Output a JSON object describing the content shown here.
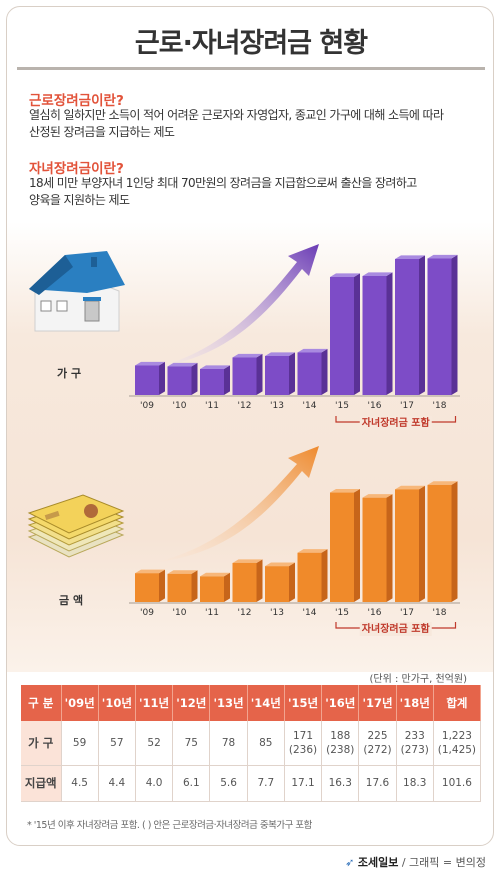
{
  "title": "근로·자녀장려금 현황",
  "intro": {
    "q1": "근로장려금이란?",
    "d1a": "열심히 일하지만 소득이 적어 어려운 근로자와 자영업자, 종교인 가구에 대해 소득에 따라",
    "d1b": "산정된 장려금을 지급하는 제도",
    "q2": "자녀장려금이란?",
    "d2a": "18세 미만 부양자녀 1인당 최대 70만원의 장려금을 지급함으로써 출산을 장려하고",
    "d2b": "양육을 지원하는 제도"
  },
  "label_households": "가 구",
  "label_amount": "금 액",
  "bracket_label": "자녀장려금 포함",
  "unit": "(단위 : 만가구, 천억원)",
  "colors": {
    "purple": "#7d4cc7",
    "orange": "#f08a2a",
    "header": "#e5644a",
    "accent": "#e2533a"
  },
  "table": {
    "corner": "구 분",
    "headers": [
      "'09년",
      "'10년",
      "'11년",
      "'12년",
      "'13년",
      "'14년",
      "'15년",
      "'16년",
      "'17년",
      "'18년",
      "합계"
    ],
    "row1_label": "가 구",
    "row1": [
      [
        "59",
        ""
      ],
      [
        "57",
        ""
      ],
      [
        "52",
        ""
      ],
      [
        "75",
        ""
      ],
      [
        "78",
        ""
      ],
      [
        "85",
        ""
      ],
      [
        "171",
        "(236)"
      ],
      [
        "188",
        "(238)"
      ],
      [
        "225",
        "(272)"
      ],
      [
        "233",
        "(273)"
      ],
      [
        "1,223",
        "(1,425)"
      ]
    ],
    "row2_label": "지급액",
    "row2": [
      "4.5",
      "4.4",
      "4.0",
      "6.1",
      "5.6",
      "7.7",
      "17.1",
      "16.3",
      "17.6",
      "18.3",
      "101.6"
    ]
  },
  "footnote": "* '15년 이후 자녀장려금 포함. (  ) 안은 근로장려금·자녀장려금 중복가구 포함",
  "credit_brand": "조세일보",
  "credit_text": " / 그래픽 = 변의정",
  "chart_data": [
    {
      "type": "bar",
      "title": "",
      "categories": [
        "'09년",
        "'10년",
        "'11년",
        "'12년",
        "'13년",
        "'14년",
        "'15년",
        "'16년",
        "'17년",
        "'18년"
      ],
      "values": [
        59,
        57,
        52,
        75,
        78,
        85,
        236,
        238,
        272,
        273
      ],
      "ylabel": "가 구",
      "ylim": [
        0,
        300
      ]
    },
    {
      "type": "bar",
      "title": "",
      "categories": [
        "'09년",
        "'10년",
        "'11년",
        "'12년",
        "'13년",
        "'14년",
        "'15년",
        "'16년",
        "'17년",
        "'18년"
      ],
      "values": [
        4.5,
        4.4,
        4.0,
        6.1,
        5.6,
        7.7,
        17.1,
        16.3,
        17.6,
        18.3
      ],
      "ylabel": "금 액",
      "ylim": [
        0,
        20
      ]
    }
  ]
}
